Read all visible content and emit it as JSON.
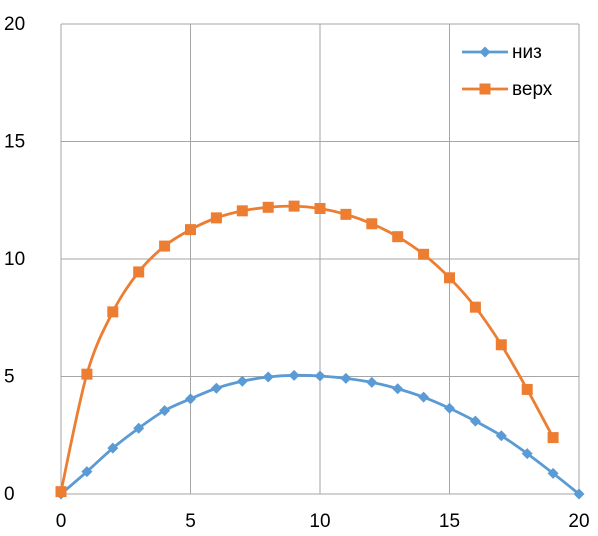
{
  "chart_data": {
    "type": "scatter",
    "title": "",
    "xlabel": "",
    "ylabel": "",
    "xlim": [
      0,
      20
    ],
    "ylim": [
      0,
      20
    ],
    "x_ticks": [
      0,
      5,
      10,
      15,
      20
    ],
    "y_ticks": [
      0,
      5,
      10,
      15,
      20
    ],
    "grid": true,
    "legend_position": "top-right",
    "series": [
      {
        "name": "низ",
        "color": "#5b9bd5",
        "marker": "diamond",
        "x": [
          0,
          1,
          2,
          3,
          4,
          5,
          6,
          7,
          8,
          9,
          10,
          11,
          12,
          13,
          14,
          15,
          16,
          17,
          18,
          19,
          20
        ],
        "y": [
          0,
          0.95,
          1.95,
          2.8,
          3.55,
          4.05,
          4.5,
          4.8,
          4.98,
          5.05,
          5.02,
          4.92,
          4.75,
          4.48,
          4.12,
          3.65,
          3.1,
          2.48,
          1.72,
          0.88,
          0
        ]
      },
      {
        "name": "верх",
        "color": "#ed7d31",
        "marker": "square",
        "x": [
          0,
          1,
          2,
          3,
          4,
          5,
          6,
          7,
          8,
          9,
          10,
          11,
          12,
          13,
          14,
          15,
          16,
          17,
          18,
          19
        ],
        "y": [
          0.1,
          5.1,
          7.75,
          9.45,
          10.55,
          11.25,
          11.75,
          12.05,
          12.2,
          12.25,
          12.15,
          11.9,
          11.5,
          10.95,
          10.2,
          9.2,
          7.95,
          6.35,
          4.45,
          2.4
        ]
      }
    ]
  }
}
